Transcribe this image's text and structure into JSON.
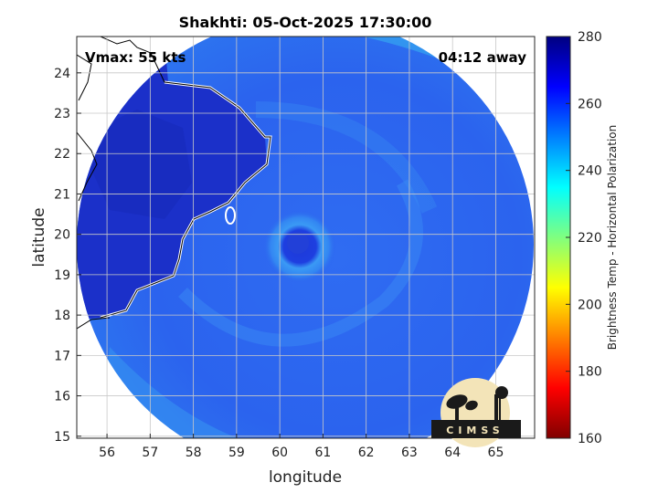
{
  "title": "Shakhti: 05-Oct-2025 17:30:00",
  "vmax_label": "Vmax: 55 kts",
  "time_label": "04:12 away",
  "logo_text": "CIMSS",
  "colors": {
    "land_dark": "#1a2fc8",
    "ocean_base": "#2d6cf0",
    "coast": "#ffffff",
    "border": "#000000"
  },
  "chart_data": {
    "type": "heatmap",
    "title": "Shakhti: 05-Oct-2025 17:30:00",
    "xlabel": "longitude",
    "ylabel": "latitude",
    "xlim": [
      55.3,
      65.9
    ],
    "ylim": [
      14.95,
      24.9
    ],
    "xticks": [
      56,
      57,
      58,
      59,
      60,
      61,
      62,
      63,
      64,
      65
    ],
    "yticks": [
      15,
      16,
      17,
      18,
      19,
      20,
      21,
      22,
      23,
      24
    ],
    "grid": true,
    "storm_center": {
      "lon": 60.4,
      "lat": 19.8
    },
    "colorbar": {
      "label": "Brightness Temp - Horizontal Polarization",
      "min": 160,
      "max": 280,
      "ticks": [
        160,
        180,
        200,
        220,
        240,
        260,
        280
      ],
      "colormap": "jet"
    }
  }
}
